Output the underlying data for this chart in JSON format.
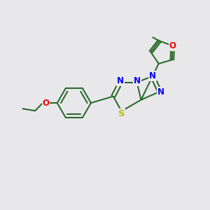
{
  "bg_color": "#e8e8eb",
  "bond_color": "#2d6b2d",
  "bond_width": 1.5,
  "atom_colors": {
    "N": "#0000ee",
    "S": "#bbbb00",
    "O": "#ee0000",
    "C": "#2d6b2d"
  },
  "font_size_atom": 8.5
}
